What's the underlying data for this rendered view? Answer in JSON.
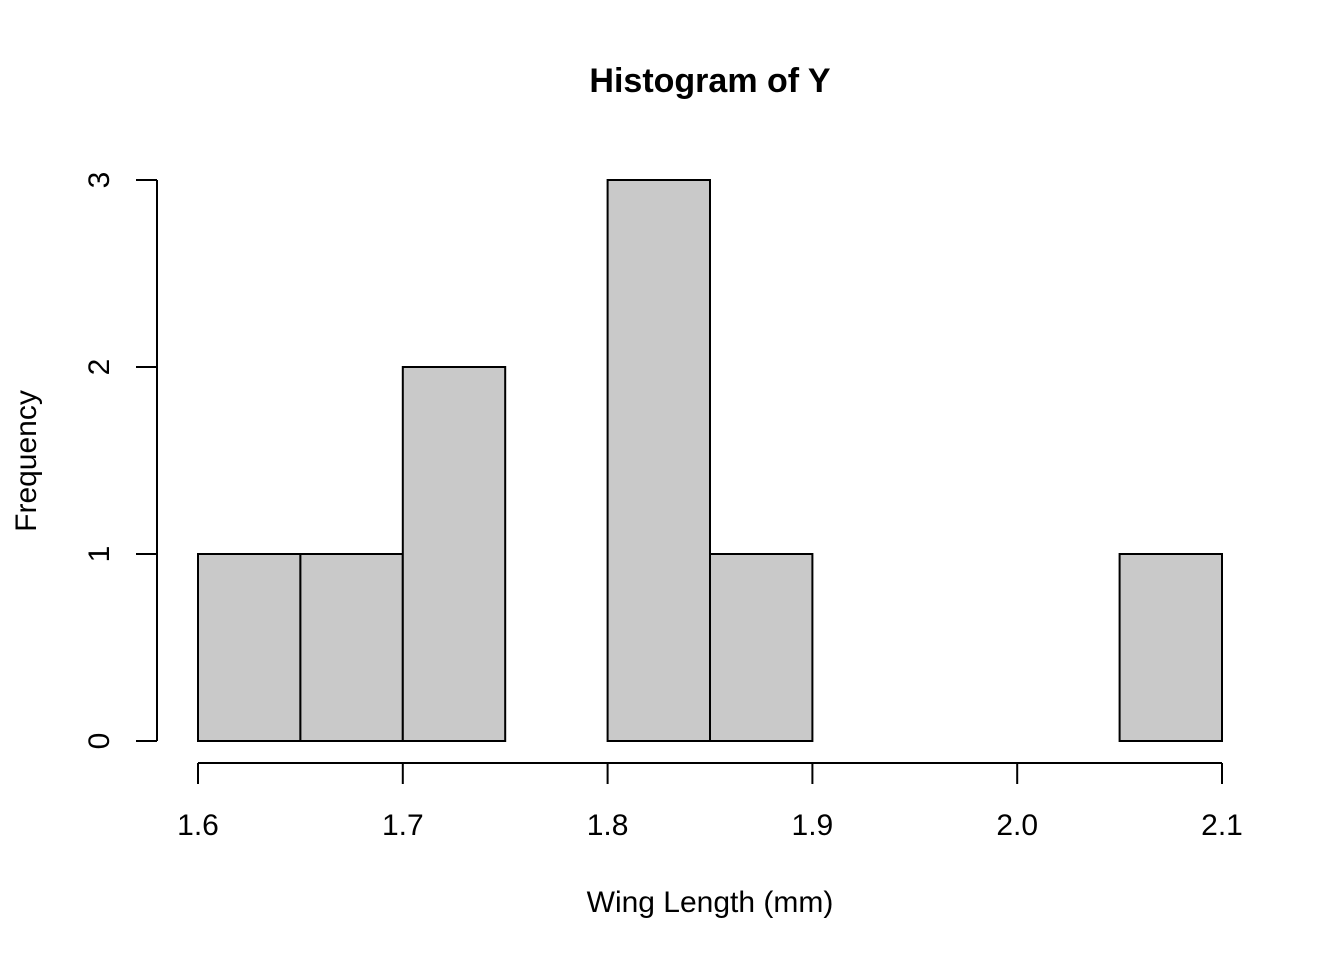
{
  "chart_data": {
    "type": "bar",
    "title": "Histogram of Y",
    "xlabel": "Wing Length (mm)",
    "ylabel": "Frequency",
    "bin_edges": [
      1.6,
      1.65,
      1.7,
      1.75,
      1.8,
      1.85,
      1.9,
      1.95,
      2.0,
      2.05,
      2.1
    ],
    "values": [
      1,
      1,
      2,
      0,
      3,
      1,
      0,
      0,
      0,
      1
    ],
    "xlim": [
      1.6,
      2.1
    ],
    "ylim": [
      0,
      3
    ],
    "x_ticks": [
      1.6,
      1.7,
      1.8,
      1.9,
      2.0,
      2.1
    ],
    "x_tick_labels": [
      "1.6",
      "1.7",
      "1.8",
      "1.9",
      "2.0",
      "2.1"
    ],
    "y_ticks": [
      0,
      1,
      2,
      3
    ],
    "y_tick_labels": [
      "0",
      "1",
      "2",
      "3"
    ],
    "grid": false,
    "legend": "none",
    "colors": {
      "bar_fill": "#c9c9c9",
      "bar_stroke": "#000000",
      "axis": "#000000",
      "background": "#ffffff"
    }
  }
}
